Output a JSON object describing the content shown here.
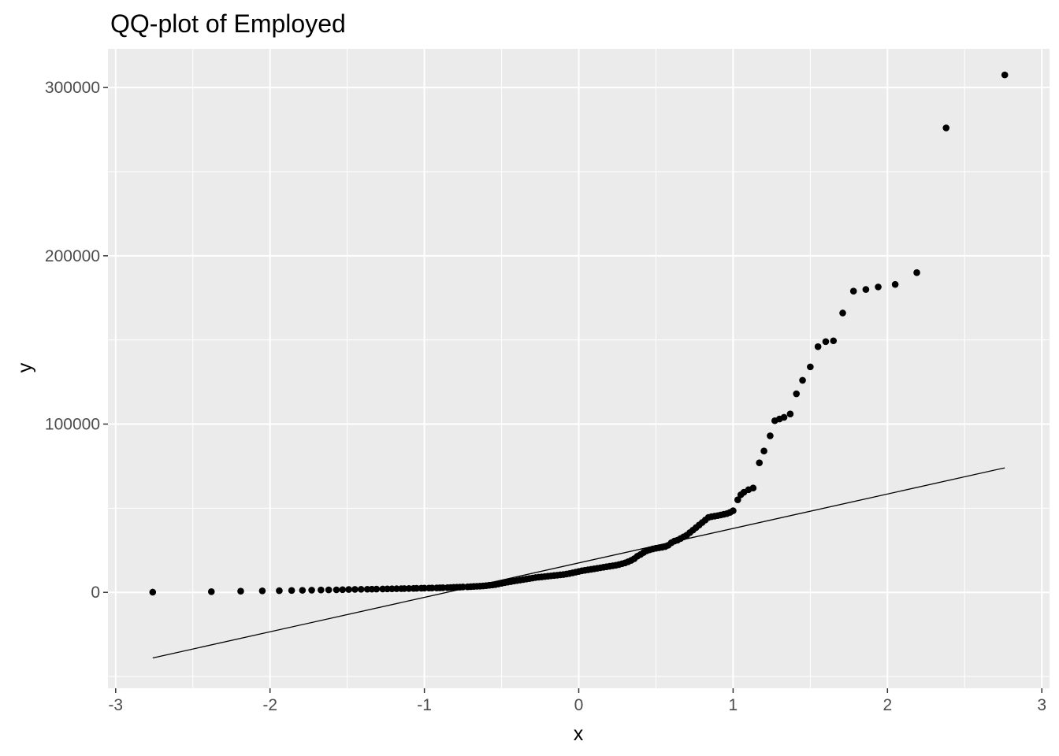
{
  "chart_data": {
    "type": "scatter",
    "title": "QQ-plot of Employed",
    "xlabel": "x",
    "ylabel": "y",
    "xlim": [
      -3.05,
      3.05
    ],
    "ylim": [
      -57000,
      323000
    ],
    "x_ticks": [
      -3,
      -2,
      -1,
      0,
      1,
      2,
      3
    ],
    "x_tick_labels": [
      "-3",
      "-2",
      "-1",
      "0",
      "1",
      "2",
      "3"
    ],
    "y_ticks": [
      0,
      100000,
      200000,
      300000
    ],
    "y_tick_labels": [
      "0",
      "100000",
      "200000",
      "300000"
    ],
    "grid": true,
    "legend": "none",
    "colors": {
      "panel": "#ebebeb",
      "grid": "#ffffff",
      "points": "#000000",
      "reference_line": "#000000"
    },
    "series": [
      {
        "type": "scatter",
        "points": [
          [
            -2.76,
            100
          ],
          [
            -2.38,
            400
          ],
          [
            -2.19,
            700
          ],
          [
            -2.05,
            900
          ],
          [
            -1.94,
            1000
          ],
          [
            -1.86,
            1100
          ],
          [
            -1.79,
            1200
          ],
          [
            -1.73,
            1300
          ],
          [
            -1.67,
            1400
          ],
          [
            -1.62,
            1450
          ],
          [
            -1.57,
            1500
          ],
          [
            -1.53,
            1600
          ],
          [
            -1.49,
            1700
          ],
          [
            -1.45,
            1750
          ],
          [
            -1.41,
            1800
          ],
          [
            -1.37,
            1850
          ],
          [
            -1.34,
            1900
          ],
          [
            -1.31,
            1950
          ],
          [
            -1.27,
            2000
          ],
          [
            -1.24,
            2050
          ],
          [
            -1.21,
            2100
          ],
          [
            -1.18,
            2150
          ],
          [
            -1.15,
            2200
          ],
          [
            -1.13,
            2250
          ],
          [
            -1.1,
            2300
          ],
          [
            -1.07,
            2350
          ],
          [
            -1.05,
            2400
          ],
          [
            -1.02,
            2450
          ],
          [
            -1.0,
            2500
          ],
          [
            -0.97,
            2550
          ],
          [
            -0.95,
            2600
          ],
          [
            -0.92,
            2650
          ],
          [
            -0.9,
            2700
          ],
          [
            -0.88,
            2750
          ],
          [
            -0.85,
            2800
          ],
          [
            -0.83,
            2900
          ],
          [
            -0.81,
            3000
          ],
          [
            -0.79,
            3050
          ],
          [
            -0.77,
            3100
          ],
          [
            -0.75,
            3200
          ],
          [
            -0.72,
            3300
          ],
          [
            -0.7,
            3400
          ],
          [
            -0.68,
            3500
          ],
          [
            -0.66,
            3600
          ],
          [
            -0.64,
            3700
          ],
          [
            -0.62,
            3800
          ],
          [
            -0.6,
            4000
          ],
          [
            -0.58,
            4200
          ],
          [
            -0.56,
            4400
          ],
          [
            -0.54,
            4600
          ],
          [
            -0.52,
            5000
          ],
          [
            -0.5,
            5400
          ],
          [
            -0.48,
            5800
          ],
          [
            -0.46,
            6100
          ],
          [
            -0.44,
            6400
          ],
          [
            -0.42,
            6700
          ],
          [
            -0.4,
            7000
          ],
          [
            -0.38,
            7300
          ],
          [
            -0.36,
            7600
          ],
          [
            -0.34,
            7900
          ],
          [
            -0.32,
            8200
          ],
          [
            -0.3,
            8500
          ],
          [
            -0.28,
            8800
          ],
          [
            -0.26,
            9000
          ],
          [
            -0.24,
            9200
          ],
          [
            -0.22,
            9400
          ],
          [
            -0.2,
            9600
          ],
          [
            -0.18,
            9800
          ],
          [
            -0.16,
            10000
          ],
          [
            -0.14,
            10200
          ],
          [
            -0.12,
            10400
          ],
          [
            -0.1,
            10600
          ],
          [
            -0.08,
            10900
          ],
          [
            -0.06,
            11200
          ],
          [
            -0.04,
            11600
          ],
          [
            -0.02,
            12000
          ],
          [
            0.0,
            12400
          ],
          [
            0.02,
            12800
          ],
          [
            0.04,
            13100
          ],
          [
            0.06,
            13400
          ],
          [
            0.08,
            13700
          ],
          [
            0.1,
            14000
          ],
          [
            0.12,
            14300
          ],
          [
            0.14,
            14600
          ],
          [
            0.16,
            14900
          ],
          [
            0.18,
            15200
          ],
          [
            0.2,
            15500
          ],
          [
            0.22,
            15800
          ],
          [
            0.24,
            16100
          ],
          [
            0.26,
            16500
          ],
          [
            0.28,
            17000
          ],
          [
            0.3,
            17500
          ],
          [
            0.32,
            18200
          ],
          [
            0.34,
            19000
          ],
          [
            0.36,
            20000
          ],
          [
            0.38,
            21500
          ],
          [
            0.4,
            22500
          ],
          [
            0.42,
            23700
          ],
          [
            0.44,
            24700
          ],
          [
            0.46,
            25300
          ],
          [
            0.48,
            25800
          ],
          [
            0.5,
            26200
          ],
          [
            0.52,
            26500
          ],
          [
            0.54,
            26800
          ],
          [
            0.56,
            27200
          ],
          [
            0.58,
            28000
          ],
          [
            0.6,
            29500
          ],
          [
            0.62,
            30500
          ],
          [
            0.64,
            31000
          ],
          [
            0.66,
            32000
          ],
          [
            0.68,
            33000
          ],
          [
            0.7,
            34000
          ],
          [
            0.72,
            35500
          ],
          [
            0.74,
            37000
          ],
          [
            0.76,
            38500
          ],
          [
            0.78,
            40000
          ],
          [
            0.8,
            41500
          ],
          [
            0.82,
            43000
          ],
          [
            0.84,
            44500
          ],
          [
            0.86,
            45000
          ],
          [
            0.88,
            45300
          ],
          [
            0.9,
            45600
          ],
          [
            0.92,
            46000
          ],
          [
            0.94,
            46400
          ],
          [
            0.96,
            46800
          ],
          [
            0.98,
            47500
          ],
          [
            1.0,
            48500
          ],
          [
            1.03,
            55000
          ],
          [
            1.05,
            58000
          ],
          [
            1.07,
            59500
          ],
          [
            1.1,
            61000
          ],
          [
            1.13,
            62000
          ],
          [
            1.17,
            77000
          ],
          [
            1.2,
            84000
          ],
          [
            1.24,
            93000
          ],
          [
            1.27,
            102000
          ],
          [
            1.3,
            103000
          ],
          [
            1.33,
            104000
          ],
          [
            1.37,
            106000
          ],
          [
            1.41,
            118000
          ],
          [
            1.45,
            126000
          ],
          [
            1.5,
            134000
          ],
          [
            1.55,
            146000
          ],
          [
            1.6,
            149000
          ],
          [
            1.65,
            149500
          ],
          [
            1.71,
            166000
          ],
          [
            1.78,
            179000
          ],
          [
            1.86,
            180000
          ],
          [
            1.94,
            181500
          ],
          [
            2.05,
            183000
          ],
          [
            2.19,
            190000
          ],
          [
            2.38,
            276000
          ],
          [
            2.76,
            307500
          ]
        ]
      },
      {
        "type": "line",
        "points": [
          [
            -2.76,
            -39000
          ],
          [
            2.76,
            74000
          ]
        ]
      }
    ]
  }
}
